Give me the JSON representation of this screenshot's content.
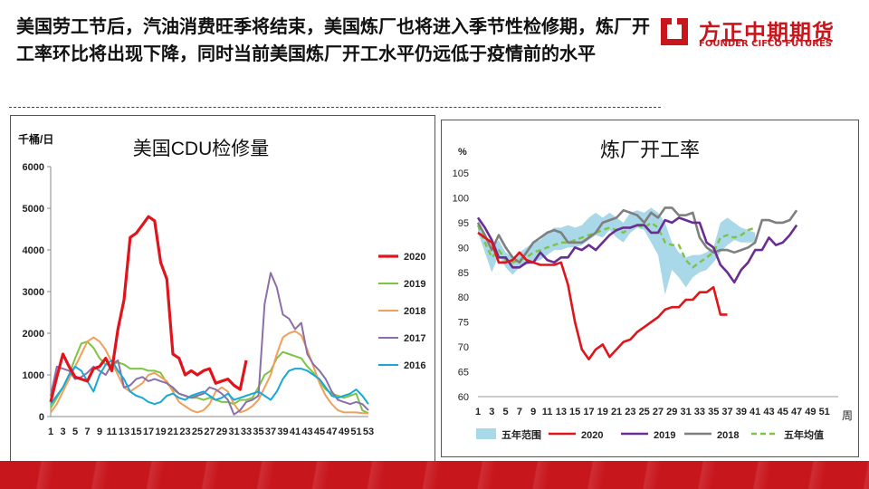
{
  "headline": "美国劳工节后，汽油消费旺季将结束，美国炼厂也将进入季节性检修期，炼厂开工率环比将出现下降，同时当前美国炼厂开工水平仍远低于疫情前的水平",
  "logo": {
    "cn": "方正中期期货",
    "en": "FOUNDER CIFCO FUTURES",
    "color": "#c8161d"
  },
  "chart_data": [
    {
      "type": "line",
      "title": "美国CDU检修量",
      "ylabel": "千桶/日",
      "xlabel": "",
      "ylim": [
        0,
        6000
      ],
      "yticks": [
        0,
        1000,
        2000,
        3000,
        4000,
        5000,
        6000
      ],
      "xticks": [
        1,
        3,
        5,
        7,
        9,
        11,
        13,
        15,
        17,
        19,
        21,
        23,
        25,
        27,
        29,
        31,
        33,
        35,
        37,
        39,
        41,
        43,
        45,
        47,
        49,
        51,
        53
      ],
      "legend_position": "right",
      "grid": false,
      "series": [
        {
          "name": "2020",
          "color": "#e0141b",
          "width": 3.2,
          "values": [
            350,
            950,
            1500,
            1200,
            950,
            900,
            850,
            1150,
            1200,
            1400,
            1100,
            2100,
            2800,
            4300,
            4400,
            4600,
            4800,
            4700,
            3700,
            3300,
            1500,
            1400,
            1000,
            1100,
            1000,
            1100,
            1150,
            800,
            850,
            900,
            750,
            650,
            1350
          ]
        },
        {
          "name": "2019",
          "color": "#7cc443",
          "width": 2,
          "values": [
            200,
            450,
            700,
            1000,
            1400,
            1750,
            1800,
            1650,
            1400,
            1250,
            1250,
            1300,
            1250,
            1150,
            1150,
            1150,
            1100,
            1100,
            1050,
            800,
            650,
            550,
            500,
            450,
            450,
            400,
            450,
            400,
            350,
            350,
            300,
            400,
            400,
            450,
            700,
            1000,
            1100,
            1400,
            1550,
            1500,
            1450,
            1400,
            1200,
            1050,
            850,
            650,
            550,
            500,
            450,
            500,
            550,
            150,
            80
          ]
        },
        {
          "name": "2018",
          "color": "#f0a05a",
          "width": 2,
          "values": [
            100,
            300,
            600,
            900,
            1200,
            1500,
            1800,
            1900,
            1800,
            1600,
            1300,
            1000,
            700,
            600,
            700,
            800,
            1000,
            1050,
            950,
            850,
            600,
            350,
            250,
            150,
            100,
            150,
            300,
            600,
            700,
            600,
            300,
            100,
            150,
            250,
            400,
            700,
            1000,
            1500,
            1900,
            2000,
            2050,
            1950,
            1600,
            1200,
            800,
            500,
            300,
            150,
            100,
            100,
            100,
            80,
            80
          ]
        },
        {
          "name": "2017",
          "color": "#8c6fa8",
          "width": 2,
          "values": [
            500,
            1200,
            1150,
            1100,
            900,
            950,
            1050,
            1200,
            1100,
            1000,
            1250,
            1350,
            700,
            750,
            900,
            950,
            850,
            900,
            850,
            800,
            700,
            550,
            500,
            450,
            500,
            550,
            700,
            650,
            550,
            400,
            50,
            150,
            350,
            400,
            500,
            2700,
            3450,
            3100,
            2450,
            2350,
            2100,
            2250,
            1500,
            1250,
            1100,
            900,
            600,
            400,
            350,
            300,
            350,
            300,
            150
          ]
        },
        {
          "name": "2016",
          "color": "#1aa7d8",
          "width": 2,
          "values": [
            300,
            500,
            700,
            1000,
            1200,
            1100,
            850,
            600,
            1000,
            1250,
            1350,
            1100,
            900,
            600,
            500,
            450,
            350,
            300,
            350,
            500,
            550,
            450,
            400,
            500,
            550,
            600,
            500,
            400,
            450,
            550,
            400,
            450,
            500,
            550,
            600,
            500,
            400,
            600,
            900,
            1100,
            1150,
            1150,
            1100,
            1000,
            900,
            700,
            500,
            450,
            500,
            550,
            650,
            500,
            300
          ]
        }
      ]
    },
    {
      "type": "line",
      "title": "炼厂开工率",
      "ylabel": "%",
      "xlabel": "周",
      "ylim": [
        60,
        105
      ],
      "yticks": [
        60,
        65,
        70,
        75,
        80,
        85,
        90,
        95,
        100,
        105
      ],
      "xticks": [
        1,
        3,
        5,
        7,
        9,
        11,
        13,
        15,
        17,
        19,
        21,
        23,
        25,
        27,
        29,
        31,
        33,
        35,
        37,
        39,
        41,
        43,
        45,
        47,
        49,
        51
      ],
      "legend_position": "bottom",
      "grid": false,
      "band": {
        "name": "五年范围",
        "color": "#a9d8e8",
        "upper": [
          95.5,
          93,
          90,
          91.5,
          89,
          88,
          89,
          90,
          91,
          91.5,
          93,
          94,
          94,
          94.5,
          94,
          94.5,
          96,
          97,
          96,
          97,
          96,
          95,
          97,
          97.5,
          97,
          98,
          97,
          95,
          91,
          89,
          88,
          88.5,
          88.5,
          89,
          90,
          95,
          96,
          95,
          94,
          93.5,
          93
        ],
        "lower": [
          93,
          89,
          85,
          88.5,
          86,
          84.5,
          86,
          86.5,
          87,
          87.5,
          88.5,
          89.5,
          89.5,
          90,
          90,
          90.5,
          91.5,
          92.5,
          92,
          93.5,
          92,
          91,
          93,
          94,
          93.5,
          91,
          88.5,
          80.5,
          85.5,
          84,
          82,
          84,
          85,
          85.5,
          87,
          89,
          90.5,
          91.5,
          91,
          91,
          91
        ]
      },
      "series": [
        {
          "name": "2020",
          "color": "#e0141b",
          "width": 2.6,
          "dash": "",
          "values": [
            93,
            92,
            91,
            87,
            87,
            87.5,
            89,
            87.5,
            87,
            86.5,
            86.5,
            86.5,
            87,
            82.5,
            75,
            69.5,
            67.5,
            69.5,
            70.5,
            68,
            69.5,
            71,
            71.5,
            73,
            74,
            75,
            76,
            77.5,
            78,
            78,
            79.5,
            79.5,
            81,
            81,
            82,
            76.5,
            76.5
          ]
        },
        {
          "name": "2019",
          "color": "#6a2d91",
          "width": 2.6,
          "dash": "",
          "values": [
            96,
            94,
            91.5,
            88,
            88,
            86,
            86,
            87,
            87,
            89,
            87.5,
            87,
            88,
            88,
            90,
            89.5,
            90.5,
            89.5,
            91,
            92.5,
            93.5,
            94,
            94,
            94.5,
            94.5,
            93,
            93,
            95.5,
            95,
            96,
            95.5,
            95,
            95,
            91,
            90,
            86.5,
            85,
            83,
            85.5,
            87,
            89.5,
            89.5,
            92,
            90.5,
            91,
            92.5,
            94.5
          ]
        },
        {
          "name": "2018",
          "color": "#7f7f7f",
          "width": 2.6,
          "dash": "",
          "values": [
            95,
            92.5,
            89.5,
            92.5,
            90,
            88,
            87,
            89,
            91,
            92,
            93,
            93.5,
            93,
            91,
            91,
            91,
            92,
            93,
            95,
            95.5,
            96,
            97.5,
            97,
            96.5,
            95,
            97,
            96,
            98,
            98,
            96.5,
            96.5,
            97,
            92,
            90,
            89,
            89.5,
            89.5,
            89,
            89.5,
            90,
            91,
            95.5,
            95.5,
            95,
            95,
            95.5,
            97.5
          ]
        },
        {
          "name": "五年均值",
          "color": "#7cc443",
          "width": 2.4,
          "dash": "6,4",
          "values": [
            94.5,
            91,
            88,
            89.5,
            87.5,
            87,
            87.5,
            88,
            89,
            89.5,
            90,
            90.5,
            91,
            91,
            91.5,
            92,
            92.5,
            93,
            93.5,
            94,
            93.5,
            93,
            94,
            94.5,
            94,
            95,
            94,
            91,
            90.5,
            90.5,
            87.5,
            86,
            87,
            88,
            89,
            92,
            92.5,
            92,
            92.5,
            93.5,
            94
          ]
        }
      ]
    }
  ]
}
